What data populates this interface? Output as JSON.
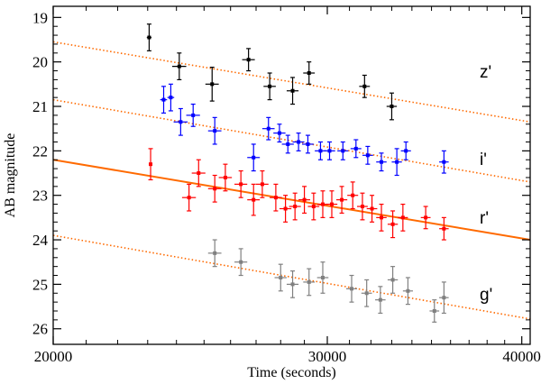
{
  "chart_data": {
    "type": "scatter",
    "title": "",
    "xlabel": "Time (seconds)",
    "ylabel": "AB magnitude",
    "xlim": [
      20000,
      40500
    ],
    "ylim": [
      26.35,
      18.75
    ],
    "y_inverted": true,
    "x_log_scale": true,
    "x_ticks": [
      20000,
      30000,
      40000
    ],
    "x_tick_labels": [
      "20000",
      "30000",
      "40000"
    ],
    "y_ticks": [
      19,
      20,
      21,
      22,
      23,
      24,
      25,
      26
    ],
    "y_tick_labels": [
      "19",
      "20",
      "21",
      "22",
      "23",
      "24",
      "25",
      "26"
    ],
    "grid": false,
    "fit_lines": [
      {
        "series": "z'",
        "color": "#ff6a00",
        "style": "dotted",
        "from": [
          20000,
          19.55
        ],
        "to": [
          40500,
          21.35
        ]
      },
      {
        "series": "i'",
        "color": "#ff6a00",
        "style": "dotted",
        "from": [
          20000,
          20.85
        ],
        "to": [
          40500,
          22.7
        ]
      },
      {
        "series": "r'",
        "color": "#ff6a00",
        "style": "solid",
        "from": [
          20000,
          22.2
        ],
        "to": [
          40500,
          24.0
        ]
      },
      {
        "series": "g'",
        "color": "#ff6a00",
        "style": "dotted",
        "from": [
          20000,
          23.9
        ],
        "to": [
          40500,
          25.78
        ]
      }
    ],
    "series": [
      {
        "name": "z'",
        "color": "#000000",
        "points": [
          {
            "x": 23050,
            "y": 19.45,
            "yerr": 0.3,
            "xerr": 80
          },
          {
            "x": 24100,
            "y": 20.1,
            "yerr": 0.3,
            "xerr": 250
          },
          {
            "x": 25300,
            "y": 20.5,
            "yerr": 0.38,
            "xerr": 250
          },
          {
            "x": 26700,
            "y": 19.95,
            "yerr": 0.25,
            "xerr": 250
          },
          {
            "x": 27550,
            "y": 20.55,
            "yerr": 0.3,
            "xerr": 250
          },
          {
            "x": 28500,
            "y": 20.65,
            "yerr": 0.3,
            "xerr": 250
          },
          {
            "x": 29200,
            "y": 20.25,
            "yerr": 0.25,
            "xerr": 250
          },
          {
            "x": 31700,
            "y": 20.55,
            "yerr": 0.25,
            "xerr": 250
          },
          {
            "x": 33000,
            "y": 21.0,
            "yerr": 0.3,
            "xerr": 250
          }
        ]
      },
      {
        "name": "i'",
        "color": "#0000ff",
        "points": [
          {
            "x": 23550,
            "y": 20.85,
            "yerr": 0.3,
            "xerr": 120
          },
          {
            "x": 23800,
            "y": 20.8,
            "yerr": 0.3,
            "xerr": 120
          },
          {
            "x": 24150,
            "y": 21.35,
            "yerr": 0.3,
            "xerr": 250
          },
          {
            "x": 24600,
            "y": 21.2,
            "yerr": 0.25,
            "xerr": 250
          },
          {
            "x": 25400,
            "y": 21.55,
            "yerr": 0.3,
            "xerr": 250
          },
          {
            "x": 26900,
            "y": 22.15,
            "yerr": 0.3,
            "xerr": 250
          },
          {
            "x": 27500,
            "y": 21.5,
            "yerr": 0.25,
            "xerr": 250
          },
          {
            "x": 27950,
            "y": 21.6,
            "yerr": 0.2,
            "xerr": 250
          },
          {
            "x": 28300,
            "y": 21.85,
            "yerr": 0.2,
            "xerr": 250
          },
          {
            "x": 28750,
            "y": 21.8,
            "yerr": 0.2,
            "xerr": 250
          },
          {
            "x": 29150,
            "y": 21.85,
            "yerr": 0.2,
            "xerr": 250
          },
          {
            "x": 29700,
            "y": 22.0,
            "yerr": 0.2,
            "xerr": 250
          },
          {
            "x": 30100,
            "y": 22.0,
            "yerr": 0.2,
            "xerr": 250
          },
          {
            "x": 30700,
            "y": 22.0,
            "yerr": 0.2,
            "xerr": 250
          },
          {
            "x": 31300,
            "y": 21.95,
            "yerr": 0.2,
            "xerr": 250
          },
          {
            "x": 31850,
            "y": 22.1,
            "yerr": 0.2,
            "xerr": 250
          },
          {
            "x": 32500,
            "y": 22.25,
            "yerr": 0.2,
            "xerr": 250
          },
          {
            "x": 33250,
            "y": 22.25,
            "yerr": 0.3,
            "xerr": 250
          },
          {
            "x": 33700,
            "y": 22.0,
            "yerr": 0.2,
            "xerr": 250
          },
          {
            "x": 35650,
            "y": 22.25,
            "yerr": 0.25,
            "xerr": 250
          }
        ]
      },
      {
        "name": "r'",
        "color": "#ff0000",
        "points": [
          {
            "x": 23100,
            "y": 22.3,
            "yerr": 0.35,
            "xerr": 60
          },
          {
            "x": 24450,
            "y": 23.05,
            "yerr": 0.3,
            "xerr": 250
          },
          {
            "x": 24800,
            "y": 22.5,
            "yerr": 0.3,
            "xerr": 250
          },
          {
            "x": 25400,
            "y": 22.85,
            "yerr": 0.3,
            "xerr": 250
          },
          {
            "x": 25800,
            "y": 22.6,
            "yerr": 0.3,
            "xerr": 250
          },
          {
            "x": 26400,
            "y": 22.75,
            "yerr": 0.3,
            "xerr": 250
          },
          {
            "x": 26900,
            "y": 23.1,
            "yerr": 0.35,
            "xerr": 250
          },
          {
            "x": 27250,
            "y": 22.75,
            "yerr": 0.3,
            "xerr": 250
          },
          {
            "x": 27800,
            "y": 23.05,
            "yerr": 0.3,
            "xerr": 250
          },
          {
            "x": 28200,
            "y": 23.3,
            "yerr": 0.3,
            "xerr": 250
          },
          {
            "x": 28600,
            "y": 23.25,
            "yerr": 0.3,
            "xerr": 250
          },
          {
            "x": 29000,
            "y": 23.1,
            "yerr": 0.3,
            "xerr": 250
          },
          {
            "x": 29400,
            "y": 23.25,
            "yerr": 0.3,
            "xerr": 250
          },
          {
            "x": 29800,
            "y": 23.2,
            "yerr": 0.3,
            "xerr": 250
          },
          {
            "x": 30200,
            "y": 23.2,
            "yerr": 0.3,
            "xerr": 250
          },
          {
            "x": 30650,
            "y": 23.1,
            "yerr": 0.3,
            "xerr": 250
          },
          {
            "x": 31150,
            "y": 23.0,
            "yerr": 0.3,
            "xerr": 250
          },
          {
            "x": 31600,
            "y": 23.25,
            "yerr": 0.3,
            "xerr": 250
          },
          {
            "x": 32050,
            "y": 23.3,
            "yerr": 0.3,
            "xerr": 250
          },
          {
            "x": 32500,
            "y": 23.5,
            "yerr": 0.3,
            "xerr": 250
          },
          {
            "x": 33050,
            "y": 23.65,
            "yerr": 0.3,
            "xerr": 250
          },
          {
            "x": 33550,
            "y": 23.5,
            "yerr": 0.3,
            "xerr": 250
          },
          {
            "x": 34700,
            "y": 23.5,
            "yerr": 0.25,
            "xerr": 250
          },
          {
            "x": 35650,
            "y": 23.75,
            "yerr": 0.25,
            "xerr": 250
          }
        ]
      },
      {
        "name": "g'",
        "color": "#808080",
        "points": [
          {
            "x": 25400,
            "y": 24.3,
            "yerr": 0.3,
            "xerr": 250
          },
          {
            "x": 26400,
            "y": 24.5,
            "yerr": 0.3,
            "xerr": 250
          },
          {
            "x": 28000,
            "y": 24.85,
            "yerr": 0.3,
            "xerr": 250
          },
          {
            "x": 28500,
            "y": 25.0,
            "yerr": 0.3,
            "xerr": 250
          },
          {
            "x": 29200,
            "y": 24.95,
            "yerr": 0.3,
            "xerr": 250
          },
          {
            "x": 29800,
            "y": 24.85,
            "yerr": 0.35,
            "xerr": 250
          },
          {
            "x": 31100,
            "y": 25.1,
            "yerr": 0.3,
            "xerr": 250
          },
          {
            "x": 31800,
            "y": 25.2,
            "yerr": 0.3,
            "xerr": 250
          },
          {
            "x": 32450,
            "y": 25.35,
            "yerr": 0.3,
            "xerr": 250
          },
          {
            "x": 33050,
            "y": 24.9,
            "yerr": 0.3,
            "xerr": 250
          },
          {
            "x": 33800,
            "y": 25.15,
            "yerr": 0.3,
            "xerr": 250
          },
          {
            "x": 35150,
            "y": 25.6,
            "yerr": 0.25,
            "xerr": 250
          },
          {
            "x": 35650,
            "y": 25.3,
            "yerr": 0.35,
            "xerr": 250
          }
        ]
      }
    ]
  }
}
